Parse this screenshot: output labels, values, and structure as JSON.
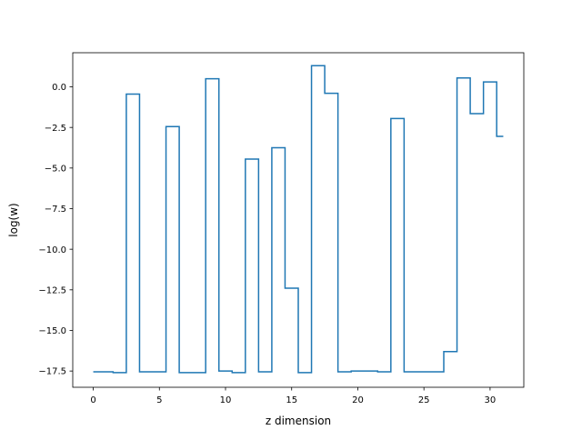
{
  "chart_data": {
    "type": "line",
    "drawstyle": "steps-mid",
    "title": "",
    "xlabel": "z dimension",
    "ylabel": "log(w)",
    "xlim": [
      -1.55,
      32.55
    ],
    "ylim": [
      -18.5,
      2.1
    ],
    "xticks": [
      0,
      5,
      10,
      15,
      20,
      25,
      30
    ],
    "xtick_labels": [
      "0",
      "5",
      "10",
      "15",
      "20",
      "25",
      "30"
    ],
    "yticks": [
      0.0,
      -2.5,
      -5.0,
      -7.5,
      -10.0,
      -12.5,
      -15.0,
      -17.5
    ],
    "ytick_labels": [
      "0.0",
      "−2.5",
      "−5.0",
      "−7.5",
      "−10.0",
      "−12.5",
      "−15.0",
      "−17.5"
    ],
    "grid": false,
    "series": [
      {
        "color": "#1f77b4",
        "x": [
          0,
          1,
          2,
          3,
          4,
          5,
          6,
          7,
          8,
          9,
          10,
          11,
          12,
          13,
          14,
          15,
          16,
          17,
          18,
          19,
          20,
          21,
          22,
          23,
          24,
          25,
          26,
          27,
          28,
          29,
          30,
          31
        ],
        "y": [
          -17.55,
          -17.55,
          -17.6,
          -0.45,
          -17.55,
          -17.55,
          -2.45,
          -17.6,
          -17.6,
          0.5,
          -17.5,
          -17.6,
          -4.45,
          -17.55,
          -3.75,
          -12.4,
          -17.6,
          1.3,
          -0.4,
          -17.55,
          -17.5,
          -17.5,
          -17.55,
          -1.95,
          -17.55,
          -17.55,
          -17.55,
          -16.3,
          0.55,
          -1.65,
          0.3,
          -3.05
        ]
      }
    ]
  }
}
